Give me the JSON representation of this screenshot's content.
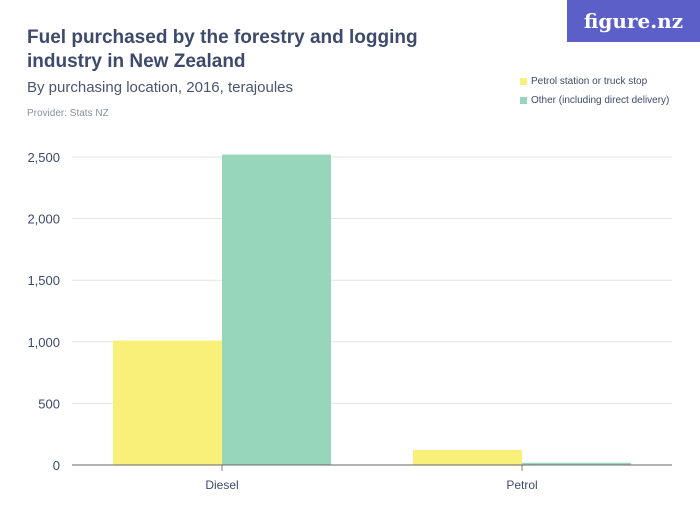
{
  "logo": "figure.nz",
  "chart_data": {
    "type": "bar",
    "title": "Fuel purchased by the forestry and logging industry in New Zealand",
    "subtitle": "By purchasing location, 2016, terajoules",
    "provider": "Provider: Stats NZ",
    "categories": [
      "Diesel",
      "Petrol"
    ],
    "series": [
      {
        "name": "Petrol station or truck stop",
        "color": "#f9f07a",
        "values": [
          1010,
          122
        ]
      },
      {
        "name": "Other (including direct delivery)",
        "color": "#98d6bb",
        "values": [
          2520,
          18
        ]
      }
    ],
    "yticks": [
      0,
      500,
      1000,
      1500,
      2000,
      2500
    ],
    "ytick_labels": [
      "0",
      "500",
      "1,000",
      "1,500",
      "2,000",
      "2,500"
    ],
    "ylim": [
      0,
      2500
    ],
    "legend": "top-right",
    "grid": true
  }
}
